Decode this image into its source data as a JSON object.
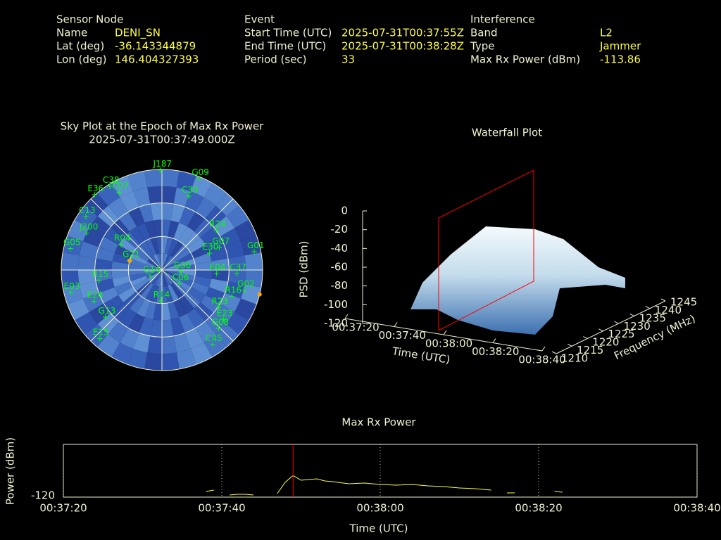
{
  "header": {
    "sensor": {
      "title": "Sensor Node",
      "rows": [
        {
          "label": "Name",
          "value": "DENI_SN"
        },
        {
          "label": "Lat (deg)",
          "value": -36.143344879
        },
        {
          "label": "Lon (deg)",
          "value": 146.404327393
        }
      ]
    },
    "event": {
      "title": "Event",
      "rows": [
        {
          "label": "Start Time (UTC)",
          "value": "2025-07-31T00:37:55Z"
        },
        {
          "label": "End Time (UTC)",
          "value": "2025-07-31T00:38:28Z"
        },
        {
          "label": "Period (sec)",
          "value": 33
        }
      ]
    },
    "interference": {
      "title": "Interference",
      "rows": [
        {
          "label": "Band",
          "value": "L2"
        },
        {
          "label": "Type",
          "value": "Jammer"
        },
        {
          "label": "Max Rx Power (dBm)",
          "value": -113.86
        }
      ]
    }
  },
  "chart_data": [
    {
      "type": "polar",
      "title": "Sky Plot at the Epoch of Max Rx Power",
      "subtitle": "2025-07-31T00:37:49.000Z",
      "ellim": [
        0,
        90
      ],
      "rticks": [
        0,
        30,
        60
      ],
      "azticks": [
        0,
        45,
        90,
        135,
        180,
        225,
        270,
        315
      ],
      "color": "#00ff00",
      "satellites": [
        {
          "name": "G09",
          "az": 22,
          "el": 2
        },
        {
          "name": "J187",
          "az": 359,
          "el": 1
        },
        {
          "name": "C30",
          "az": 20,
          "el": 20
        },
        {
          "name": "R24",
          "az": 54,
          "el": 30
        },
        {
          "name": "G07",
          "az": 69,
          "el": 35
        },
        {
          "name": "E30",
          "az": 71,
          "el": 45
        },
        {
          "name": "G01",
          "az": 79,
          "el": 6
        },
        {
          "name": "C37",
          "az": 93,
          "el": 23
        },
        {
          "name": "E04",
          "az": 94,
          "el": 41
        },
        {
          "name": "G02",
          "az": 104,
          "el": 14
        },
        {
          "name": "R16",
          "az": 111,
          "el": 23
        },
        {
          "name": "R23",
          "az": 124,
          "el": 29
        },
        {
          "name": "E23",
          "az": 129,
          "el": 19
        },
        {
          "name": "G08",
          "az": 136,
          "el": 17
        },
        {
          "name": "C45",
          "az": 146,
          "el": 9
        },
        {
          "name": "G30",
          "az": 96,
          "el": 73
        },
        {
          "name": "C06",
          "az": 129,
          "el": 70
        },
        {
          "name": "R14",
          "az": 183,
          "el": 62
        },
        {
          "name": "G14",
          "az": 242,
          "el": 78
        },
        {
          "name": "G21",
          "az": 286,
          "el": 60
        },
        {
          "name": "R04",
          "az": 302,
          "el": 47
        },
        {
          "name": "C13",
          "az": 305,
          "el": 7
        },
        {
          "name": "J200",
          "az": 296,
          "el": 15
        },
        {
          "name": "G05",
          "az": 283,
          "el": 6
        },
        {
          "name": "E03",
          "az": 256,
          "el": 6
        },
        {
          "name": "E24",
          "az": 245,
          "el": 23
        },
        {
          "name": "G13",
          "az": 230,
          "el": 24
        },
        {
          "name": "E15",
          "az": 222,
          "el": 7
        },
        {
          "name": "R15",
          "az": 260,
          "el": 33
        },
        {
          "name": "C38",
          "az": 328,
          "el": 2
        },
        {
          "name": "C07",
          "az": 331,
          "el": 11
        },
        {
          "name": "E36",
          "az": 318,
          "el": 0
        }
      ],
      "jammer_points": [
        {
          "az": 286,
          "el": 60
        },
        {
          "az": 104,
          "el": 0
        }
      ],
      "jammer_color": "#ffa500"
    },
    {
      "type": "surface",
      "title": "Waterfall Plot",
      "xlabel": "Time (UTC)",
      "ylabel": "Frequency (MHz)",
      "zlabel": "PSD (dBm)",
      "xlim": [
        0,
        80
      ],
      "xticks": [
        {
          "value": 0,
          "label": "00:37:20"
        },
        {
          "value": 20,
          "label": "00:37:40"
        },
        {
          "value": 40,
          "label": "00:38:00"
        },
        {
          "value": 60,
          "label": "00:38:20"
        },
        {
          "value": 80,
          "label": "00:38:40"
        }
      ],
      "ylim": [
        1210,
        1245
      ],
      "yticks": [
        1210,
        1215,
        1220,
        1225,
        1230,
        1235,
        1240,
        1245
      ],
      "zlim": [
        -120,
        0
      ],
      "zticks": [
        0,
        -20,
        -40,
        -60,
        -80,
        -100,
        -120
      ]
    },
    {
      "type": "line",
      "title": "Max Rx Power",
      "xlabel": "Time (UTC)",
      "ylabel": "Power (dBm)",
      "xlim": [
        0,
        80
      ],
      "xticks": [
        {
          "value": 0,
          "label": "00:37:20"
        },
        {
          "value": 20,
          "label": "00:37:40"
        },
        {
          "value": 40,
          "label": "00:38:00"
        },
        {
          "value": 60,
          "label": "00:38:20"
        },
        {
          "value": 80,
          "label": "00:38:40"
        }
      ],
      "ylim": [
        -120,
        -105
      ],
      "yticks": [
        -120
      ],
      "grid": true,
      "marker_x": 29,
      "marker_color": "#ff0000",
      "x": [
        18,
        19,
        20,
        21,
        22,
        23,
        24,
        25,
        27,
        28,
        29,
        30,
        31,
        32,
        33,
        34,
        36,
        38,
        40,
        42,
        44,
        46,
        48,
        50,
        52,
        54,
        55,
        56,
        57,
        58,
        62,
        63
      ],
      "series": [
        {
          "name": "Max Rx Power",
          "color": "#ffff40",
          "values": [
            -118.4,
            -118.0,
            null,
            -119.4,
            -119.2,
            -119.2,
            -119.4,
            null,
            -119.0,
            -115.8,
            -113.86,
            -115.2,
            -115.0,
            -114.8,
            -115.4,
            -115.6,
            -116.2,
            -116.0,
            -116.4,
            -116.6,
            -116.4,
            -116.8,
            -117.0,
            -117.4,
            -117.6,
            -118.0,
            null,
            -118.8,
            -118.8,
            null,
            -118.4,
            -118.6
          ]
        }
      ]
    }
  ]
}
